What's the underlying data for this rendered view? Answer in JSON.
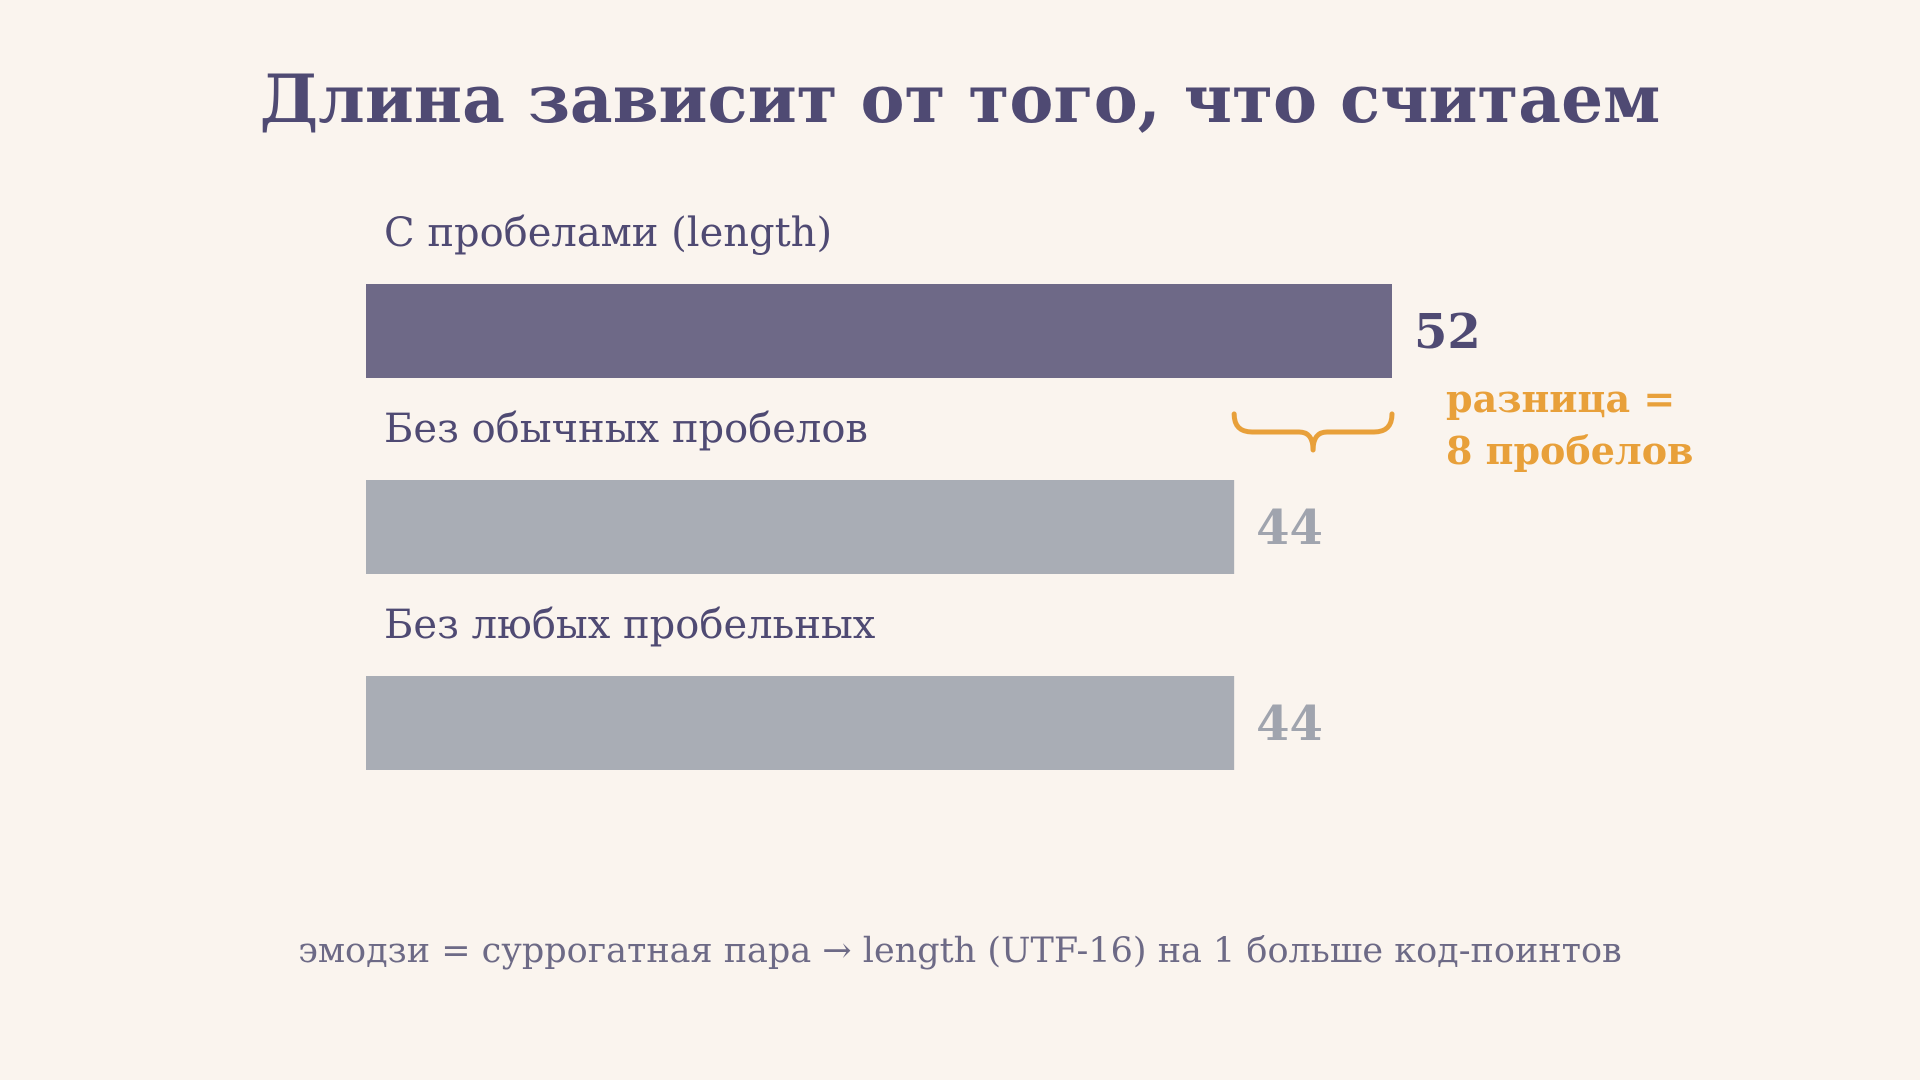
{
  "colors": {
    "background": "#faf4ee",
    "title": "#4f4a73",
    "highlight_bar": "#6e6987",
    "highlight_value": "#4f4a73",
    "muted_bar": "#a9adb5",
    "muted_value": "#a0a4ae",
    "accent": "#e8a03a",
    "footnote": "#6d6a86"
  },
  "chart_data": {
    "type": "bar",
    "orientation": "horizontal",
    "title": "Длина зависит от того, что считаем",
    "categories": [
      "С пробелами (length)",
      "Без обычных пробелов",
      "Без любых пробельных"
    ],
    "values": [
      52,
      44,
      44
    ],
    "value_labels": [
      "52",
      "44",
      "44"
    ],
    "highlight_index": 0,
    "xlim": [
      0,
      52
    ],
    "grid": false,
    "legend": "none",
    "annotation": {
      "type": "brace",
      "between": [
        0,
        1
      ],
      "lines": [
        "разница =",
        "8 пробелов"
      ]
    },
    "footnote": "эмодзи = суррогатная пара → length (UTF-16) на 1 больше код-поинтов"
  }
}
